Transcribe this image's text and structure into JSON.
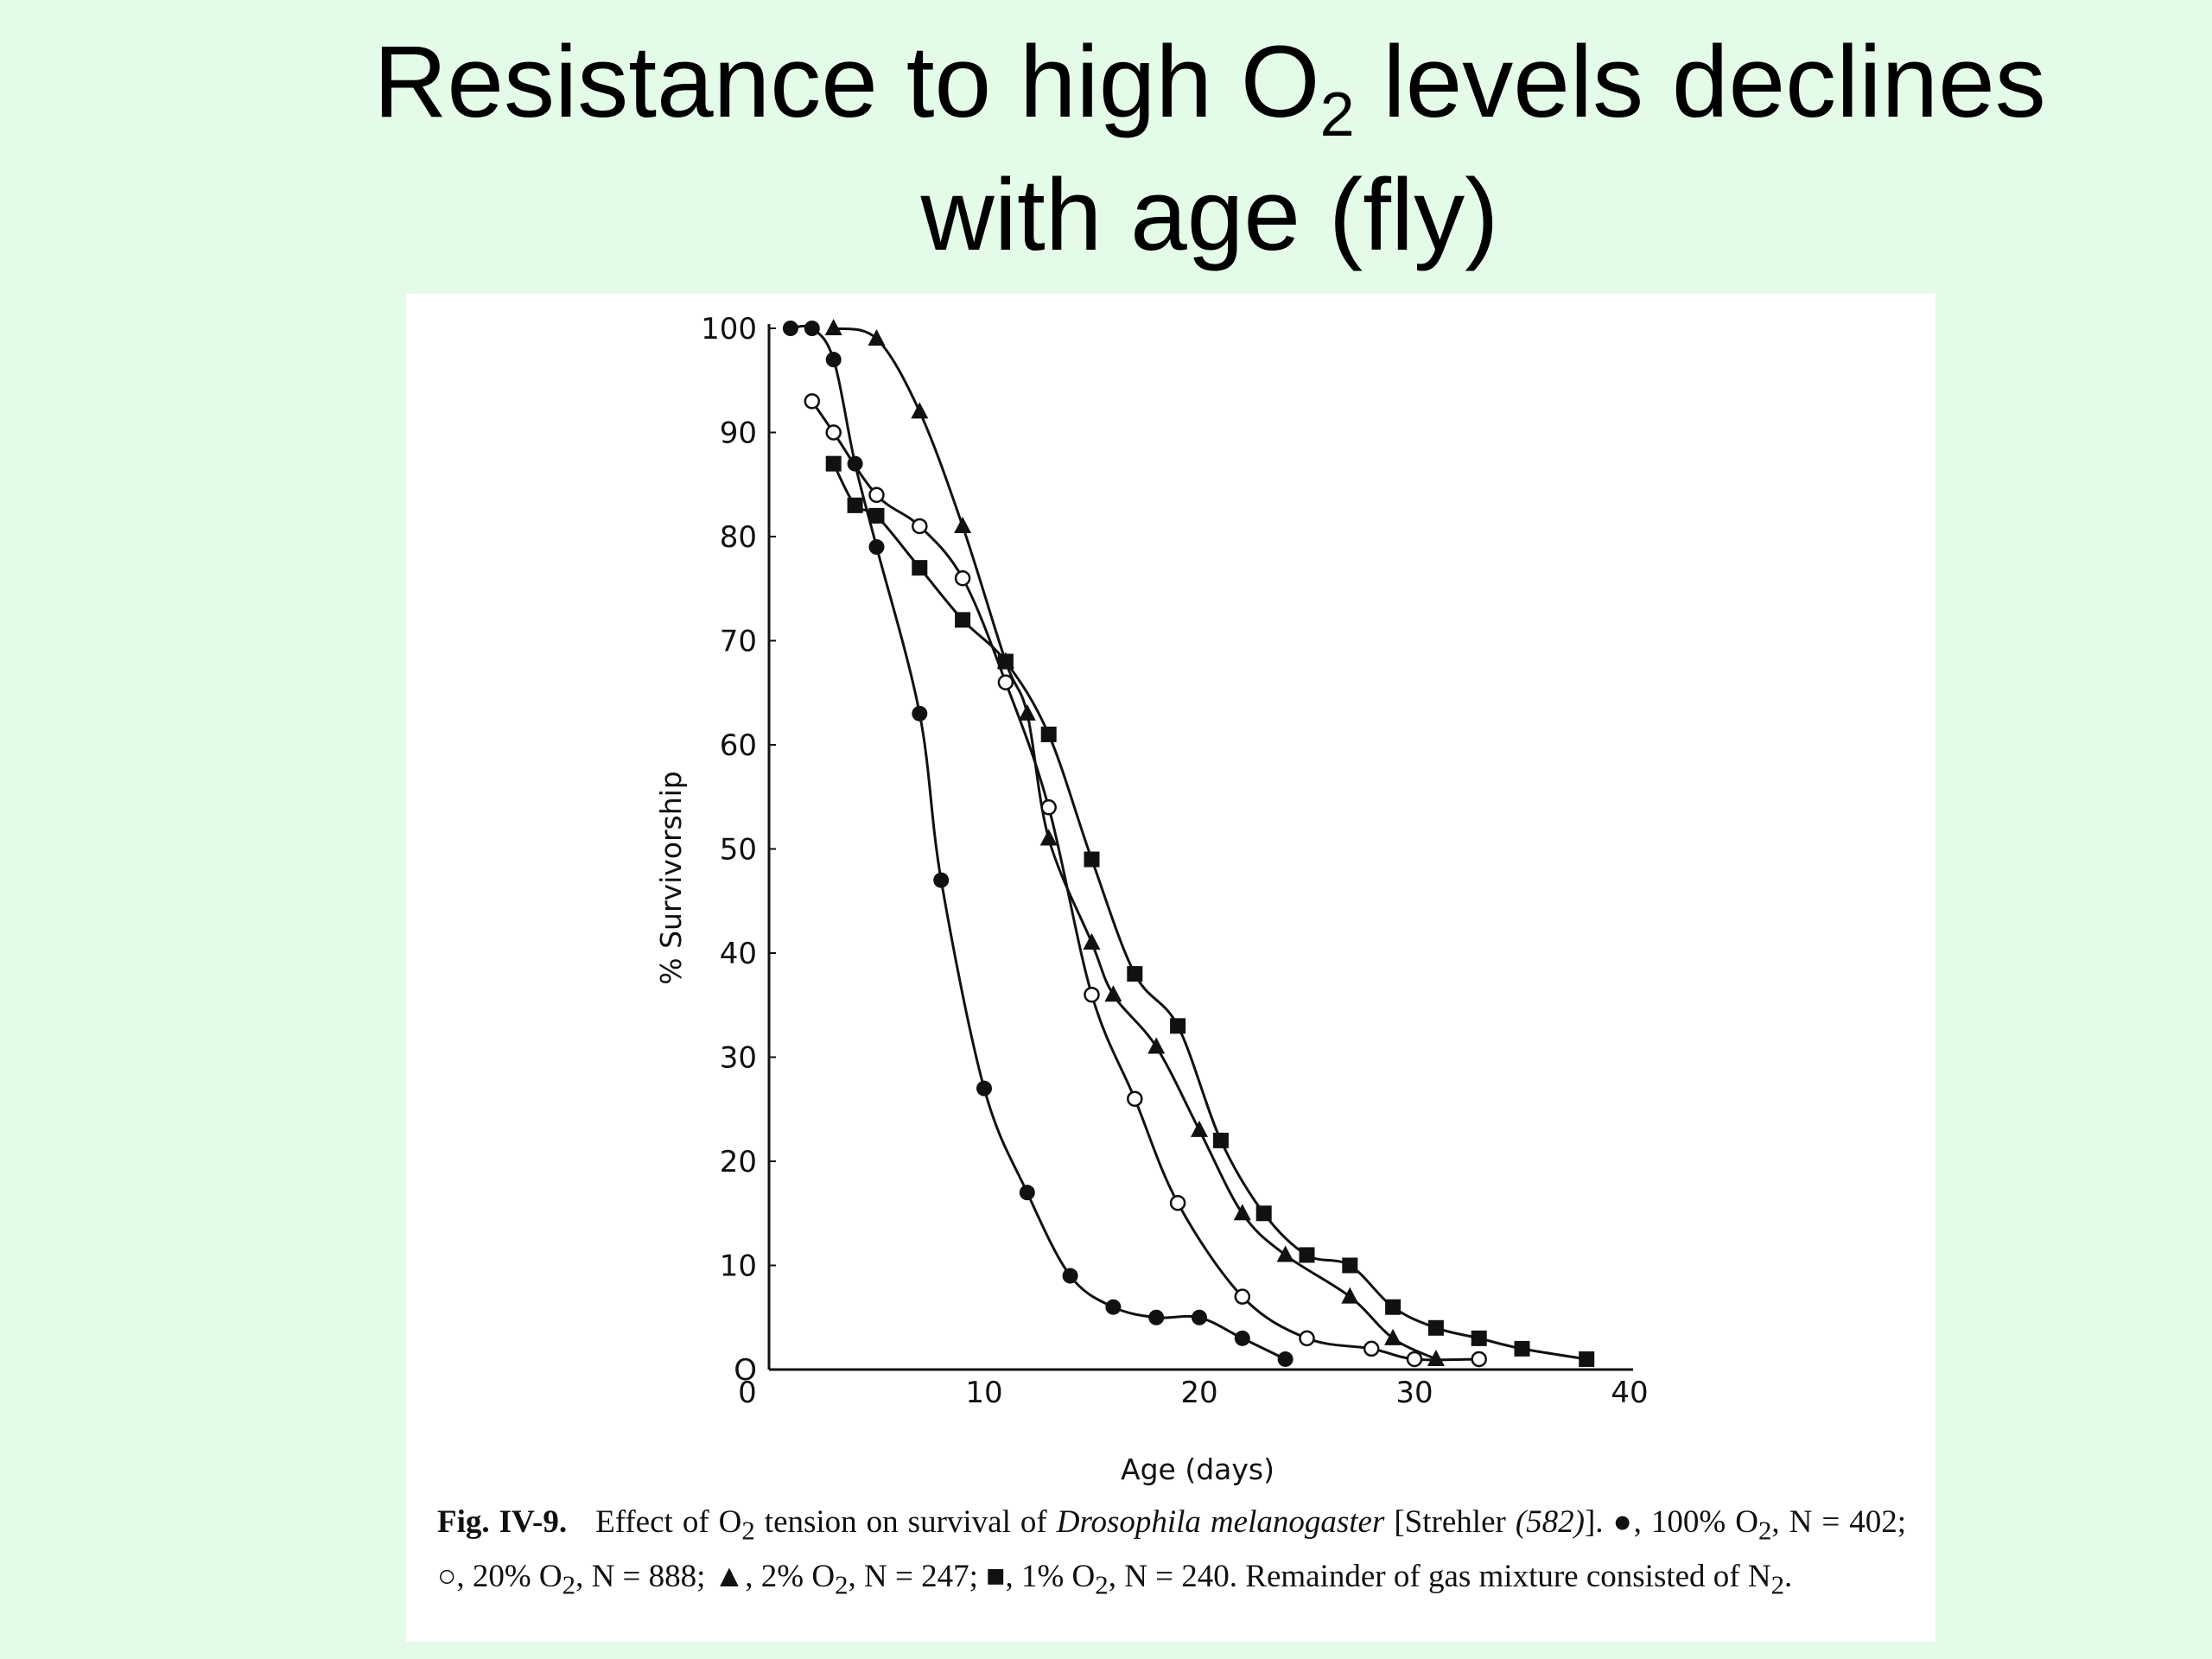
{
  "slide": {
    "title_part1": "Resistance to high O",
    "title_subscript": "2",
    "title_part2": " levels declines",
    "title_line2": "with age (fly)"
  },
  "caption": {
    "fig_label": "Fig. IV-9.",
    "text1": "Effect of O",
    "sub1": "2",
    "text2": " tension on survival of ",
    "species": "Drosophila melanogaster",
    "text3": " [Strehler ",
    "ref": "(582)",
    "text4": "]. ●, 100% O",
    "sub2": "2",
    "text5": ", N = 402; ○, 20% O",
    "sub3": "2",
    "text6": ", N = 888; ▲, 2% O",
    "sub4": "2",
    "text7": ", N = 247; ■, 1% O",
    "sub5": "2",
    "text8": ", N = 240. Remainder of gas mixture consisted of N",
    "sub6": "2",
    "text9": "."
  },
  "chart_data": {
    "type": "scatter",
    "title": "",
    "xlabel": "Age (days)",
    "ylabel": "% Survivorship",
    "xlim": [
      0,
      40
    ],
    "ylim": [
      0,
      100
    ],
    "xticks": [
      "0",
      "10",
      "20",
      "30",
      "40"
    ],
    "yticks": [
      "O",
      "10",
      "20",
      "30",
      "40",
      "50",
      "60",
      "70",
      "80",
      "90",
      "100"
    ],
    "grid": false,
    "series": [
      {
        "name": "100% O2",
        "marker": "filled-circle",
        "points": [
          [
            1,
            100
          ],
          [
            2,
            100
          ],
          [
            3,
            97
          ],
          [
            4,
            87
          ],
          [
            5,
            79
          ],
          [
            7,
            63
          ],
          [
            8,
            47
          ],
          [
            10,
            27
          ],
          [
            12,
            17
          ],
          [
            14,
            9
          ],
          [
            16,
            6
          ],
          [
            18,
            5
          ],
          [
            20,
            5
          ],
          [
            22,
            3
          ],
          [
            24,
            1
          ]
        ]
      },
      {
        "name": "20% O2",
        "marker": "open-circle",
        "points": [
          [
            2,
            93
          ],
          [
            3,
            90
          ],
          [
            5,
            84
          ],
          [
            7,
            81
          ],
          [
            9,
            76
          ],
          [
            11,
            66
          ],
          [
            13,
            54
          ],
          [
            15,
            36
          ],
          [
            17,
            26
          ],
          [
            19,
            16
          ],
          [
            22,
            7
          ],
          [
            25,
            3
          ],
          [
            28,
            2
          ],
          [
            30,
            1
          ],
          [
            33,
            1
          ]
        ]
      },
      {
        "name": "2% O2",
        "marker": "filled-triangle",
        "points": [
          [
            3,
            100
          ],
          [
            5,
            99
          ],
          [
            7,
            92
          ],
          [
            9,
            81
          ],
          [
            11,
            68
          ],
          [
            12,
            63
          ],
          [
            13,
            51
          ],
          [
            15,
            41
          ],
          [
            16,
            36
          ],
          [
            18,
            31
          ],
          [
            20,
            23
          ],
          [
            22,
            15
          ],
          [
            24,
            11
          ],
          [
            27,
            7
          ],
          [
            29,
            3
          ],
          [
            31,
            1
          ]
        ]
      },
      {
        "name": "1% O2",
        "marker": "filled-square",
        "points": [
          [
            3,
            87
          ],
          [
            4,
            83
          ],
          [
            5,
            82
          ],
          [
            7,
            77
          ],
          [
            9,
            72
          ],
          [
            11,
            68
          ],
          [
            13,
            61
          ],
          [
            15,
            49
          ],
          [
            17,
            38
          ],
          [
            19,
            33
          ],
          [
            21,
            22
          ],
          [
            23,
            15
          ],
          [
            25,
            11
          ],
          [
            27,
            10
          ],
          [
            29,
            6
          ],
          [
            31,
            4
          ],
          [
            33,
            3
          ],
          [
            35,
            2
          ],
          [
            38,
            1
          ]
        ]
      }
    ]
  }
}
